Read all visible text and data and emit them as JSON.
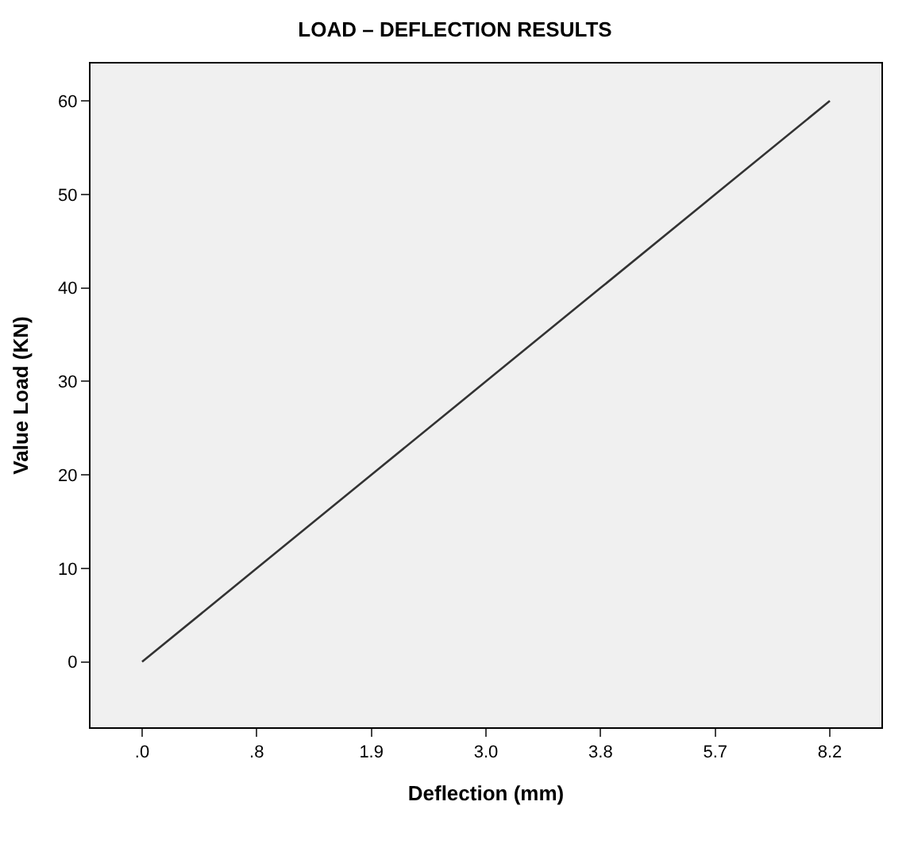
{
  "chart_data": {
    "type": "line",
    "title": "LOAD – DEFLECTION RESULTS",
    "xlabel": "Deflection (mm)",
    "ylabel": "Value Load (KN)",
    "categories": [
      ".0",
      ".8",
      "1.9",
      "3.0",
      "3.8",
      "5.7",
      "8.2"
    ],
    "values": [
      0,
      10,
      20,
      30,
      40,
      50,
      60
    ],
    "color": "#333333",
    "ylim": [
      -7,
      64
    ],
    "yticks": [
      0,
      10,
      20,
      30,
      40,
      50,
      60
    ],
    "grid": false,
    "marker": "none",
    "line_style": "solid"
  }
}
